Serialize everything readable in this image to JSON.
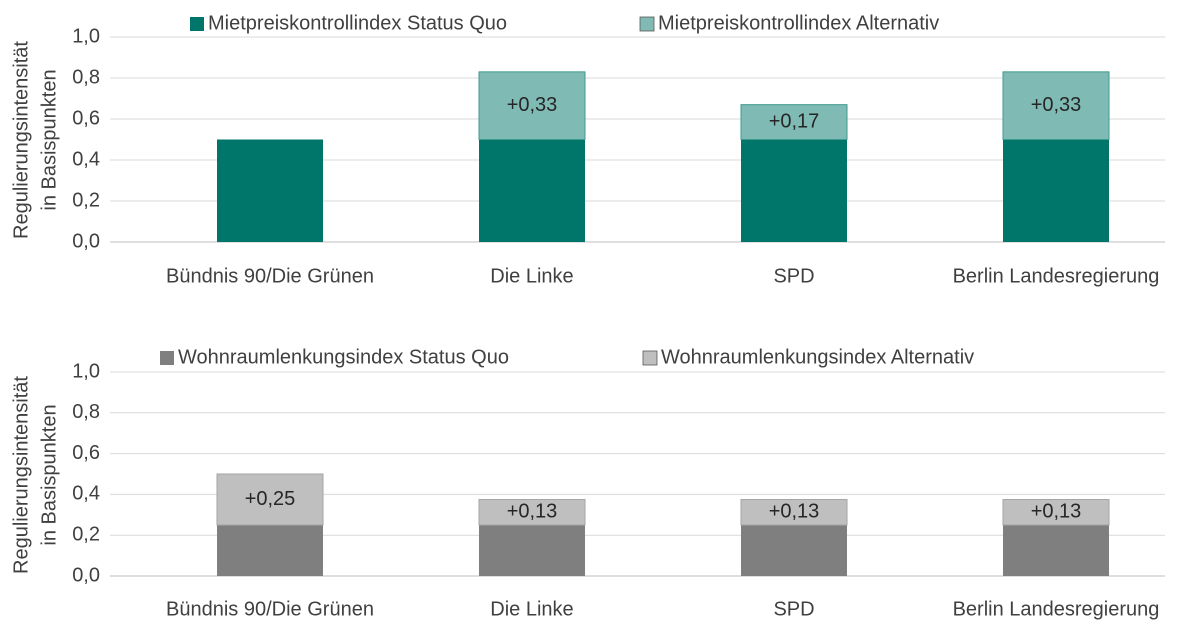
{
  "chart_data": [
    {
      "type": "stacked_bar",
      "ylabel": [
        "Regulierungsintensität",
        "in Basispunkten"
      ],
      "categories": [
        "Bündnis 90/Die Grünen",
        "Die Linke",
        "SPD",
        "Berlin Landesregierung"
      ],
      "series": [
        {
          "name": "Mietpreiskontrollindex Status Quo",
          "color": "#00766a",
          "values": [
            0.5,
            0.5,
            0.5,
            0.5
          ]
        },
        {
          "name": "Mietpreiskontrollindex Alternativ",
          "color": "#7fbab4",
          "values": [
            null,
            0.33,
            0.17,
            0.33
          ],
          "value_labels": [
            null,
            "+0,33",
            "+0,17",
            "+0,33"
          ]
        }
      ],
      "ylim": [
        0,
        1
      ],
      "yticks": [
        {
          "value": 0,
          "label": "0,0"
        },
        {
          "value": 0.2,
          "label": "0,2"
        },
        {
          "value": 0.4,
          "label": "0,4"
        },
        {
          "value": 0.6,
          "label": "0,6"
        },
        {
          "value": 0.8,
          "label": "0,8"
        },
        {
          "value": 1,
          "label": "1,0"
        }
      ],
      "grid": true,
      "legend": "top"
    },
    {
      "type": "stacked_bar",
      "ylabel": [
        "Regulierungsintensität",
        "in Basispunkten"
      ],
      "categories": [
        "Bündnis 90/Die Grünen",
        "Die Linke",
        "SPD",
        "Berlin Landesregierung"
      ],
      "series": [
        {
          "name": "Wohnraumlenkungsindex Status Quo",
          "color": "#7f7f7f",
          "values": [
            0.25,
            0.25,
            0.25,
            0.25
          ]
        },
        {
          "name": "Wohnraumlenkungsindex Alternativ",
          "color": "#bfbfbf",
          "values": [
            0.25,
            0.125,
            0.125,
            0.125
          ],
          "value_labels": [
            "+0,25",
            "+0,13",
            "+0,13",
            "+0,13"
          ]
        }
      ],
      "ylim": [
        0,
        1
      ],
      "yticks": [
        {
          "value": 0,
          "label": "0,0"
        },
        {
          "value": 0.2,
          "label": "0,2"
        },
        {
          "value": 0.4,
          "label": "0,4"
        },
        {
          "value": 0.6,
          "label": "0,6"
        },
        {
          "value": 0.8,
          "label": "0,8"
        },
        {
          "value": 1,
          "label": "1,0"
        }
      ],
      "grid": true,
      "legend": "top"
    }
  ]
}
